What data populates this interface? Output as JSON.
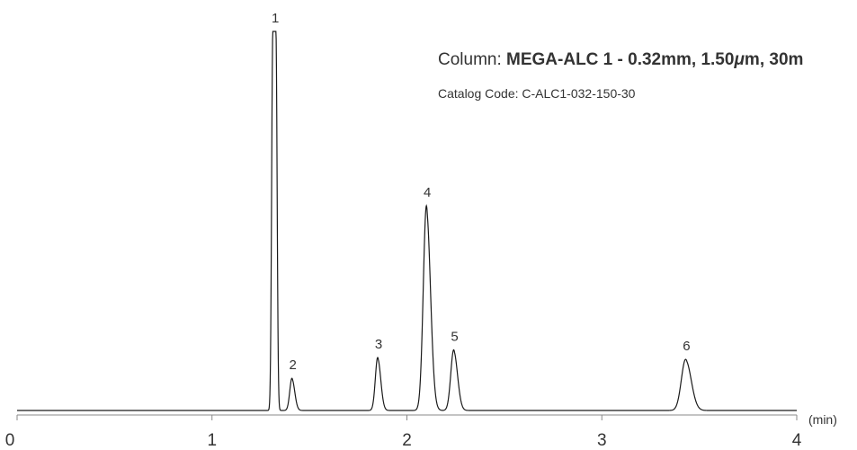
{
  "annotation": {
    "column_prefix": "Column: ",
    "column_name": "MEGA-ALC 1 - 0.32mm, 1.50",
    "column_mu": "μ",
    "column_suffix": "m, 30m",
    "catalog_code": "Catalog Code: C-ALC1-032-150-30"
  },
  "chart_data": {
    "type": "line",
    "title": "",
    "xlabel": "(min)",
    "ylabel": "",
    "xlim": [
      0,
      4
    ],
    "ylim": [
      0,
      1
    ],
    "x_ticks": [
      0,
      1,
      2,
      3,
      4
    ],
    "x_tick_labels": [
      "0",
      "1",
      "2",
      "3",
      "4"
    ],
    "grid": false,
    "line_color": "#1a1a1a",
    "peaks": [
      {
        "label": "1",
        "x": 1.32,
        "height": 1.0,
        "sigma": 0.012,
        "clipped": true
      },
      {
        "label": "2",
        "x": 1.41,
        "height": 0.085,
        "sigma": 0.011
      },
      {
        "label": "3",
        "x": 1.85,
        "height": 0.14,
        "sigma": 0.012
      },
      {
        "label": "4",
        "x": 2.1,
        "height": 0.54,
        "sigma": 0.016
      },
      {
        "label": "5",
        "x": 2.24,
        "height": 0.16,
        "sigma": 0.015
      },
      {
        "label": "6",
        "x": 3.43,
        "height": 0.135,
        "sigma": 0.022
      }
    ]
  }
}
